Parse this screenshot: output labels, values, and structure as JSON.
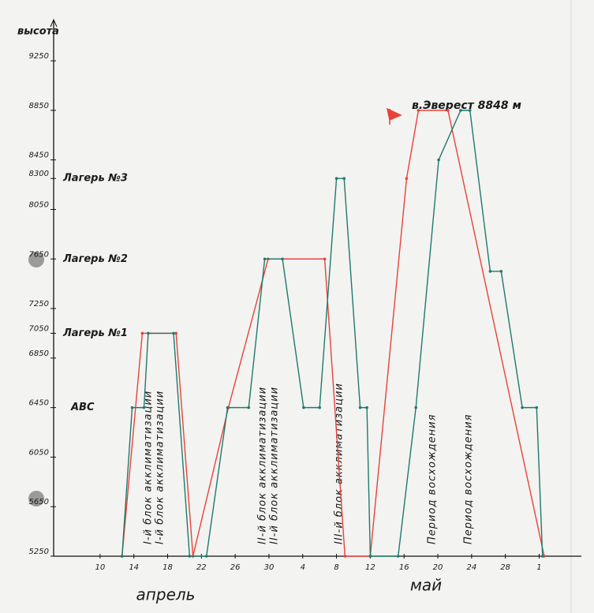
{
  "chart_data": {
    "type": "line",
    "y_label": "высота",
    "month_labels": [
      "апрель",
      "май"
    ],
    "xlim": [
      4.5,
      67
    ],
    "ylim": [
      5250,
      9550
    ],
    "xticks": [
      {
        "value": 10,
        "label": "10"
      },
      {
        "value": 14,
        "label": "14"
      },
      {
        "value": 18,
        "label": "18"
      },
      {
        "value": 22,
        "label": "22"
      },
      {
        "value": 26,
        "label": "26"
      },
      {
        "value": 30,
        "label": "30"
      },
      {
        "value": 34,
        "label": "4"
      },
      {
        "value": 38,
        "label": "8"
      },
      {
        "value": 42,
        "label": "12"
      },
      {
        "value": 46,
        "label": "16"
      },
      {
        "value": 50,
        "label": "20"
      },
      {
        "value": 54,
        "label": "24"
      },
      {
        "value": 58,
        "label": "28"
      },
      {
        "value": 62,
        "label": "1"
      }
    ],
    "yticks": [
      5250,
      5650,
      6050,
      6450,
      6850,
      7050,
      7250,
      7650,
      8050,
      8300,
      8450,
      8850,
      9250
    ],
    "camps": [
      {
        "label": "АВС",
        "value": 6450
      },
      {
        "label": "Лагерь №1",
        "value": 7050
      },
      {
        "label": "Лагерь №2",
        "value": 7650
      },
      {
        "label": "Лагерь №3",
        "value": 8300
      }
    ],
    "summit_label": "в.Эверест 8848 м",
    "annotations": [
      {
        "text": "I-й блок акклиматизации",
        "color": "#e8423a"
      },
      {
        "text": "I-й блок акклиматизации",
        "color": "#1f7a6a"
      },
      {
        "text": "II-й блок акклиматизации",
        "color": "#e8423a"
      },
      {
        "text": "II-й блок акклиматизации",
        "color": "#1f7a6a"
      },
      {
        "text": "III-й блок акклиматизации",
        "color": "#1f7a6a"
      },
      {
        "text": "Период восхождения",
        "color": "#e8423a"
      },
      {
        "text": "Период восхождения",
        "color": "#1f7a6a"
      }
    ],
    "series": [
      {
        "color": "#e8423a",
        "x": [
          12.6,
          15,
          19,
          21,
          25.2,
          29.9,
          36.6,
          39,
          42,
          46.3,
          47.7,
          51.2,
          62.6
        ],
        "values": [
          5250,
          7050,
          7050,
          5250,
          6450,
          7650,
          7650,
          5250,
          5250,
          8300,
          8850,
          8850,
          5250
        ]
      },
      {
        "color": "#1f7a6a",
        "x": [
          12.6,
          13.8,
          15.2,
          15.7,
          18.7,
          20.6,
          22.6,
          25.1,
          27.6,
          29.5,
          31.6,
          34.1,
          36,
          38,
          38.9,
          40.8,
          41.6,
          42,
          45.3,
          47.4,
          50.1,
          52.7,
          53.8,
          56.2,
          57.5,
          60,
          61.7,
          62.4
        ],
        "values": [
          5250,
          6450,
          6450,
          7050,
          7050,
          5250,
          5250,
          6450,
          6450,
          7650,
          7650,
          6450,
          6450,
          8300,
          8300,
          6450,
          6450,
          5250,
          5250,
          6450,
          8450,
          8850,
          8850,
          7550,
          7550,
          6450,
          6450,
          5250
        ]
      }
    ]
  }
}
